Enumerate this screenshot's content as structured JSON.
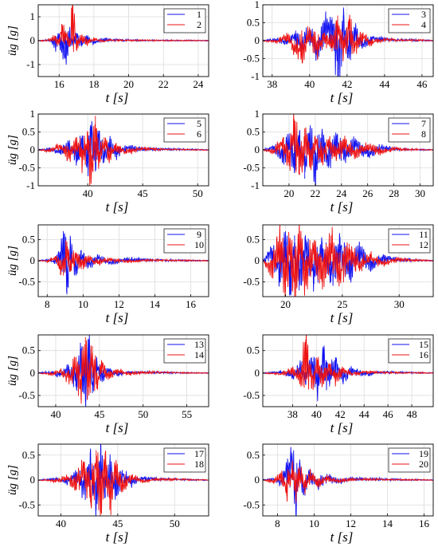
{
  "colors": {
    "series_a": "#1010f0",
    "series_b": "#ee1111",
    "grid": "#dcdcdc",
    "axis": "#000000"
  },
  "chart_data": [
    {
      "type": "line",
      "xlabel": "t [s]",
      "ylabel": "üg [g]",
      "xlim": [
        14.8,
        24.6
      ],
      "ylim": [
        -1.5,
        1.5
      ],
      "xticks": [
        16,
        18,
        20,
        22,
        24
      ],
      "yticks": [
        -1,
        0,
        1
      ],
      "grid": true,
      "legend": "top-right",
      "series": [
        {
          "name": "1",
          "peaks": [
            {
              "t": 16.4,
              "a": -0.9
            }
          ]
        },
        {
          "name": "2",
          "peaks": [
            {
              "t": 16.75,
              "a": 1.45
            },
            {
              "t": 16.15,
              "a": 0.7
            }
          ]
        }
      ],
      "x": [
        14.8,
        15.2,
        15.5,
        15.8,
        16.0,
        16.15,
        16.4,
        16.6,
        16.75,
        17.0,
        17.3,
        17.6,
        18.0,
        18.5,
        19,
        20,
        21,
        22,
        23,
        24,
        24.6
      ],
      "values_a": [
        0,
        0.02,
        0.05,
        -0.3,
        0.3,
        -0.5,
        -0.9,
        0.4,
        -0.2,
        0.3,
        -0.25,
        0.15,
        -0.1,
        0.08,
        0.05,
        0.03,
        0.02,
        0.02,
        0.01,
        0.01,
        0
      ],
      "values_b": [
        0,
        -0.02,
        0.1,
        0.2,
        -0.2,
        0.7,
        0.3,
        -0.2,
        1.45,
        -0.3,
        0.2,
        -0.15,
        0.1,
        -0.05,
        0.04,
        0.02,
        0.02,
        0.01,
        0.01,
        0.01,
        0
      ]
    },
    {
      "type": "line",
      "xlabel": "t [s]",
      "ylabel": "",
      "xlim": [
        37.5,
        46.6
      ],
      "ylim": [
        -1,
        1
      ],
      "xticks": [
        38,
        40,
        42,
        44,
        46
      ],
      "yticks": [
        -1,
        -0.5,
        0,
        0.5,
        1
      ],
      "grid": true,
      "legend": "top-right",
      "series": [
        {
          "name": "3"
        },
        {
          "name": "4"
        }
      ],
      "x": [
        37.5,
        38.2,
        38.8,
        39.2,
        39.6,
        40.0,
        40.4,
        40.8,
        41.2,
        41.5,
        41.8,
        42.1,
        42.4,
        42.8,
        43.3,
        44,
        45,
        46,
        46.6
      ],
      "values_a": [
        0,
        0.05,
        -0.1,
        0.2,
        -0.3,
        0.35,
        -0.4,
        0.5,
        0.65,
        -1.0,
        0.7,
        -0.5,
        0.35,
        -0.2,
        0.1,
        0.05,
        0.03,
        0.02,
        0
      ],
      "values_b": [
        0,
        -0.05,
        0.15,
        -0.3,
        -0.6,
        0.3,
        -0.4,
        0.2,
        -0.3,
        0.7,
        -0.45,
        0.6,
        -0.3,
        0.2,
        -0.1,
        0.05,
        0.02,
        0.02,
        0
      ]
    },
    {
      "type": "line",
      "xlabel": "t [s]",
      "ylabel": "üg [g]",
      "xlim": [
        35.5,
        51
      ],
      "ylim": [
        -1,
        1
      ],
      "xticks": [
        40,
        45,
        50
      ],
      "yticks": [
        -1,
        -0.5,
        0,
        0.5,
        1
      ],
      "grid": true,
      "legend": "top-right",
      "series": [
        {
          "name": "5"
        },
        {
          "name": "6"
        }
      ],
      "x": [
        35.5,
        36.5,
        37.5,
        38.3,
        39.0,
        39.5,
        40.0,
        40.3,
        40.7,
        41.0,
        41.5,
        42.0,
        42.5,
        43.5,
        45,
        47,
        49,
        51
      ],
      "values_a": [
        0,
        0.05,
        -0.1,
        0.2,
        -0.35,
        0.4,
        -0.5,
        0.65,
        -0.6,
        0.45,
        -0.35,
        0.3,
        -0.2,
        0.1,
        0.05,
        0.03,
        0.02,
        0
      ],
      "values_b": [
        0,
        -0.05,
        0.15,
        -0.25,
        0.3,
        -0.45,
        0.5,
        -0.95,
        0.95,
        -0.4,
        0.35,
        -0.25,
        0.15,
        -0.1,
        0.05,
        0.02,
        0.01,
        0
      ]
    },
    {
      "type": "line",
      "xlabel": "t [s]",
      "ylabel": "",
      "xlim": [
        18,
        31
      ],
      "ylim": [
        -1,
        1
      ],
      "xticks": [
        20,
        22,
        24,
        26,
        28,
        30
      ],
      "yticks": [
        -1,
        -0.5,
        0,
        0.5,
        1
      ],
      "grid": true,
      "legend": "top-right",
      "series": [
        {
          "name": "7"
        },
        {
          "name": "8"
        }
      ],
      "x": [
        18,
        18.8,
        19.5,
        20,
        20.4,
        20.8,
        21.2,
        21.6,
        22,
        22.5,
        23,
        23.6,
        24.2,
        25,
        26,
        27,
        28,
        29.5,
        31
      ],
      "values_a": [
        0,
        0.1,
        -0.3,
        0.4,
        -0.6,
        0.5,
        -0.8,
        0.6,
        -0.9,
        0.45,
        -0.5,
        0.4,
        -0.3,
        0.25,
        -0.2,
        0.1,
        0.05,
        0.02,
        0
      ],
      "values_b": [
        0,
        -0.1,
        0.3,
        -0.45,
        0.85,
        -0.7,
        0.6,
        -0.5,
        0.4,
        -0.35,
        0.3,
        -0.25,
        0.3,
        -0.2,
        0.15,
        -0.1,
        0.05,
        0.02,
        0
      ]
    },
    {
      "type": "line",
      "xlabel": "t [s]",
      "ylabel": "üg [g]",
      "xlim": [
        7.5,
        17
      ],
      "ylim": [
        -0.85,
        0.85
      ],
      "xticks": [
        8,
        10,
        12,
        14,
        16
      ],
      "yticks": [
        -0.5,
        0,
        0.5
      ],
      "grid": true,
      "legend": "top-right",
      "series": [
        {
          "name": "9"
        },
        {
          "name": "10"
        }
      ],
      "x": [
        7.5,
        8,
        8.4,
        8.7,
        8.9,
        9.1,
        9.3,
        9.6,
        9.9,
        10.3,
        10.8,
        11.5,
        12.5,
        13.5,
        15,
        16,
        17
      ],
      "values_a": [
        0,
        0.02,
        -0.05,
        0.2,
        0.7,
        -0.8,
        0.4,
        -0.35,
        0.25,
        -0.15,
        0.1,
        -0.08,
        0.05,
        0.03,
        0.02,
        0.01,
        0
      ],
      "values_b": [
        0,
        -0.02,
        0.08,
        -0.2,
        -0.35,
        0.45,
        -0.25,
        0.2,
        -0.2,
        0.1,
        -0.08,
        0.05,
        -0.04,
        0.02,
        0.01,
        0.01,
        0
      ]
    },
    {
      "type": "line",
      "xlabel": "t [s]",
      "ylabel": "",
      "xlim": [
        18,
        33
      ],
      "ylim": [
        -0.85,
        0.85
      ],
      "xticks": [
        20,
        25,
        30
      ],
      "yticks": [
        -0.5,
        0,
        0.5
      ],
      "grid": true,
      "legend": "top-right",
      "series": [
        {
          "name": "11"
        },
        {
          "name": "12"
        }
      ],
      "x": [
        18,
        18.8,
        19.5,
        20,
        20.4,
        20.8,
        21.2,
        21.8,
        22.5,
        23.2,
        24,
        24.8,
        25.6,
        26.5,
        27.5,
        28.5,
        30,
        31.5,
        33
      ],
      "values_a": [
        0,
        0.3,
        -0.5,
        0.7,
        -0.8,
        0.6,
        -0.7,
        0.5,
        -0.55,
        0.45,
        -0.5,
        0.55,
        -0.4,
        0.3,
        -0.2,
        0.1,
        0.05,
        0.02,
        0
      ],
      "values_b": [
        0,
        -0.3,
        0.6,
        -0.75,
        0.5,
        -0.85,
        0.7,
        -0.6,
        0.45,
        -0.5,
        0.6,
        -0.45,
        0.4,
        -0.25,
        0.15,
        -0.1,
        0.05,
        0.02,
        0
      ]
    },
    {
      "type": "line",
      "xlabel": "t [s]",
      "ylabel": "üg [g]",
      "xlim": [
        38,
        57.5
      ],
      "ylim": [
        -0.75,
        0.85
      ],
      "xticks": [
        40,
        45,
        50,
        55
      ],
      "yticks": [
        -0.5,
        0,
        0.5
      ],
      "grid": true,
      "legend": "top-right",
      "series": [
        {
          "name": "13"
        },
        {
          "name": "14"
        }
      ],
      "x": [
        38,
        39.5,
        40.5,
        41.5,
        42.3,
        42.9,
        43.4,
        43.8,
        44.2,
        44.7,
        45.3,
        46,
        47,
        48.5,
        50,
        52,
        54,
        57.5
      ],
      "values_a": [
        0,
        0.03,
        -0.08,
        0.15,
        -0.3,
        0.55,
        -0.65,
        0.75,
        -0.45,
        0.3,
        -0.2,
        0.1,
        -0.05,
        0.03,
        0.02,
        0.02,
        0.01,
        0
      ],
      "values_b": [
        0,
        -0.03,
        0.06,
        -0.2,
        0.35,
        -0.6,
        0.8,
        -0.5,
        0.6,
        -0.35,
        0.25,
        -0.15,
        0.08,
        -0.04,
        0.03,
        0.02,
        0.01,
        0
      ]
    },
    {
      "type": "line",
      "xlabel": "t [s]",
      "ylabel": "",
      "xlim": [
        35.5,
        49.8
      ],
      "ylim": [
        -0.75,
        0.85
      ],
      "xticks": [
        38,
        40,
        42,
        44,
        46,
        48
      ],
      "yticks": [
        -0.5,
        0,
        0.5
      ],
      "grid": true,
      "legend": "top-right",
      "series": [
        {
          "name": "15"
        },
        {
          "name": "16"
        }
      ],
      "x": [
        35.5,
        37,
        38,
        38.6,
        39.1,
        39.6,
        40.1,
        40.6,
        41.1,
        41.6,
        42.2,
        43,
        44,
        45.5,
        47,
        48.5,
        49.8
      ],
      "values_a": [
        0,
        0.03,
        -0.1,
        0.2,
        -0.25,
        0.35,
        -0.45,
        0.55,
        -0.3,
        0.35,
        -0.2,
        0.1,
        -0.05,
        0.03,
        0.02,
        0.01,
        0
      ],
      "values_b": [
        0,
        -0.03,
        0.1,
        -0.2,
        0.75,
        -0.35,
        0.3,
        -0.25,
        0.2,
        -0.2,
        0.1,
        -0.05,
        0.04,
        0.02,
        0.01,
        0.01,
        0
      ]
    },
    {
      "type": "line",
      "xlabel": "t [s]",
      "ylabel": "üg [g]",
      "xlim": [
        38,
        53
      ],
      "ylim": [
        -0.72,
        0.72
      ],
      "xticks": [
        40,
        45,
        50
      ],
      "yticks": [
        -0.5,
        0,
        0.5
      ],
      "grid": true,
      "legend": "top-right",
      "series": [
        {
          "name": "17"
        },
        {
          "name": "18"
        }
      ],
      "x": [
        38,
        39.5,
        40.5,
        41.3,
        42,
        42.6,
        43.1,
        43.5,
        43.9,
        44.3,
        44.8,
        45.4,
        46.2,
        47.2,
        48.5,
        50,
        51.5,
        53
      ],
      "values_a": [
        0,
        0.03,
        -0.06,
        0.15,
        -0.3,
        0.45,
        -0.6,
        0.7,
        -0.35,
        0.4,
        -0.3,
        0.2,
        -0.1,
        0.05,
        0.03,
        0.02,
        0.01,
        0
      ],
      "values_b": [
        0,
        -0.03,
        0.08,
        -0.2,
        0.35,
        -0.45,
        0.6,
        -0.65,
        0.5,
        -0.6,
        0.3,
        -0.2,
        0.1,
        -0.05,
        0.03,
        0.02,
        0.01,
        0
      ]
    },
    {
      "type": "line",
      "xlabel": "t [s]",
      "ylabel": "",
      "xlim": [
        7.2,
        16.5
      ],
      "ylim": [
        -0.72,
        0.72
      ],
      "xticks": [
        8,
        10,
        12,
        14,
        16
      ],
      "yticks": [
        -0.5,
        0,
        0.5
      ],
      "grid": true,
      "legend": "top-right",
      "series": [
        {
          "name": "19"
        },
        {
          "name": "20"
        }
      ],
      "x": [
        7.2,
        7.8,
        8.2,
        8.5,
        8.8,
        9.0,
        9.2,
        9.5,
        9.8,
        10.2,
        10.7,
        11.3,
        12,
        13,
        14,
        15.2,
        16.5
      ],
      "values_a": [
        0,
        0.03,
        -0.1,
        0.3,
        0.55,
        -0.65,
        0.35,
        -0.25,
        0.2,
        -0.15,
        0.1,
        -0.06,
        0.04,
        0.03,
        0.02,
        0.01,
        0
      ],
      "values_b": [
        0,
        -0.05,
        0.15,
        -0.3,
        0.3,
        -0.35,
        0.25,
        -0.2,
        0.15,
        -0.12,
        0.08,
        -0.05,
        0.03,
        0.02,
        0.01,
        0.01,
        0
      ]
    }
  ]
}
